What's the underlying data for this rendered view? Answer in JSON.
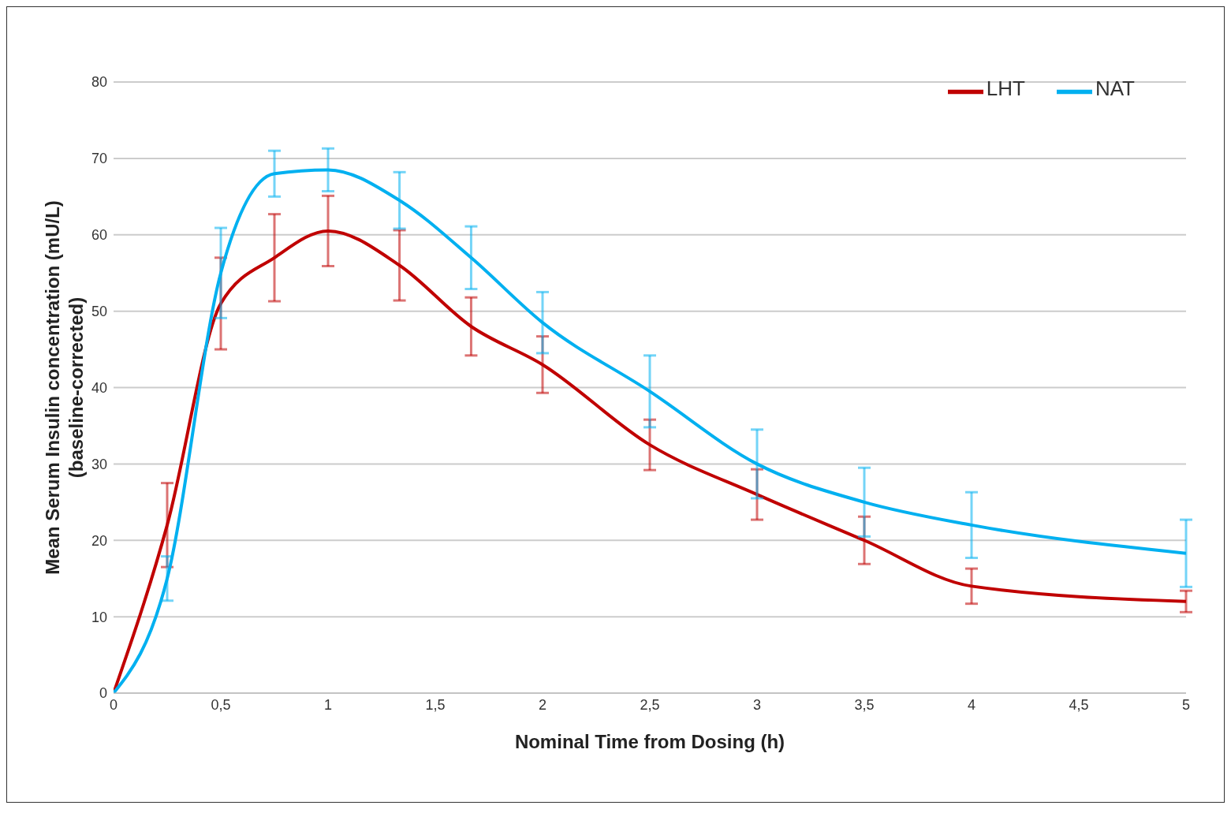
{
  "chart_data": {
    "type": "line",
    "xlabel": "Nominal Time from Dosing (h)",
    "ylabel": "Mean Serum Insulin concentration (mU/L)\n(baseline-corrected)",
    "x": [
      0,
      0.25,
      0.5,
      0.75,
      1,
      1.333,
      1.667,
      2,
      2.5,
      3,
      3.5,
      4,
      5
    ],
    "series": [
      {
        "name": "LHT",
        "color": "#c00000",
        "values": [
          0,
          22,
          51,
          57,
          60.5,
          56,
          48,
          43,
          32.5,
          26,
          20,
          14,
          12
        ],
        "errors": [
          null,
          5.5,
          6,
          5.7,
          4.6,
          4.6,
          3.8,
          3.7,
          3.3,
          3.3,
          3.1,
          2.3,
          1.4
        ]
      },
      {
        "name": "NAT",
        "color": "#00b0f0",
        "values": [
          0,
          15,
          55,
          68,
          68.5,
          64.5,
          57,
          48.5,
          39.5,
          30,
          25,
          22,
          18.3
        ],
        "errors": [
          null,
          2.9,
          5.9,
          3,
          2.8,
          3.7,
          4.1,
          4,
          4.7,
          4.5,
          4.5,
          4.3,
          4.4
        ]
      }
    ],
    "xlim": [
      0,
      5
    ],
    "xticks": [
      0,
      {
        "value": 0.5,
        "label": "0,5"
      },
      1,
      {
        "value": 1.5,
        "label": "1,5"
      },
      2,
      {
        "value": 2.5,
        "label": "2,5"
      },
      3,
      {
        "value": 3.5,
        "label": "3,5"
      },
      4,
      {
        "value": 4.5,
        "label": "4,5"
      },
      5
    ],
    "ylim": [
      0,
      80
    ],
    "yticks": [
      0,
      10,
      20,
      30,
      40,
      50,
      60,
      70,
      80
    ],
    "grid": "y",
    "legend": "top right",
    "marker": "none",
    "line_style": "solid"
  }
}
